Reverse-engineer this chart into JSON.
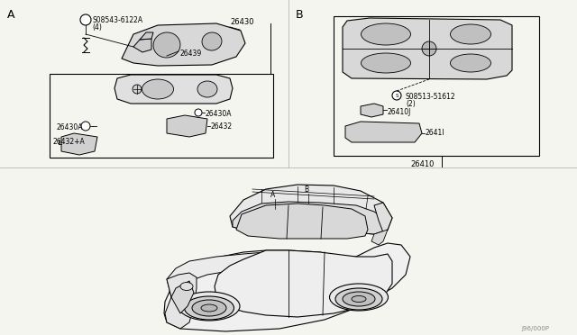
{
  "bg_color": "#f5f5f0",
  "label_A": "A",
  "label_B": "B",
  "part_26430": "26430",
  "part_26439": "26439",
  "part_S08543": "S08543-6122A",
  "part_S08543_qty": "(4)",
  "part_26430A": "26430A",
  "part_26432": "26432",
  "part_26432pA": "26432+A",
  "part_26410": "26410",
  "part_S08513": "S08513-51612",
  "part_S08513_qty": "(2)",
  "part_26410J": "26410J",
  "part_26411": "2641I",
  "watermark": "J96/000P",
  "lc": "#000000",
  "gray": "#888888"
}
